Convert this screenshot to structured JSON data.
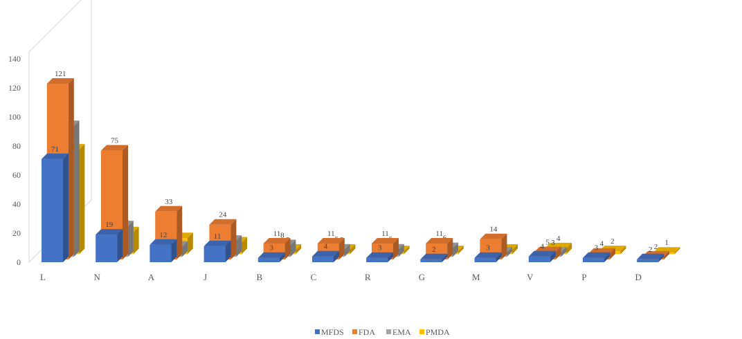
{
  "chart_data": {
    "type": "bar",
    "title": "",
    "xlabel": "",
    "ylabel": "",
    "ylim": [
      0,
      140
    ],
    "yticks": [
      "0",
      "20",
      "40",
      "60",
      "80",
      "100",
      "120",
      "140"
    ],
    "categories": [
      "L",
      "N",
      "A",
      "J",
      "B",
      "C",
      "R",
      "G",
      "M",
      "V",
      "P",
      "D"
    ],
    "series": [
      {
        "name": "MFDS",
        "color": "#4472C4",
        "values": [
          71,
          19,
          12,
          11,
          3,
          4,
          3,
          2,
          3,
          4,
          3,
          2
        ]
      },
      {
        "name": "FDA",
        "color": "#ED7D31",
        "values": [
          121,
          75,
          33,
          24,
          11,
          11,
          11,
          11,
          14,
          5,
          4,
          2
        ]
      },
      {
        "name": "EMA",
        "color": "#A5A5A5",
        "values": [
          90,
          21,
          7,
          11,
          8,
          5,
          5,
          6,
          3,
          3,
          null,
          null
        ]
      },
      {
        "name": "PMDA",
        "color": "#FFC000",
        "values": [
          72,
          15,
          11,
          8,
          3,
          3,
          2,
          2,
          3,
          4,
          2,
          1
        ]
      }
    ],
    "legend": "bottom",
    "grid": false
  }
}
